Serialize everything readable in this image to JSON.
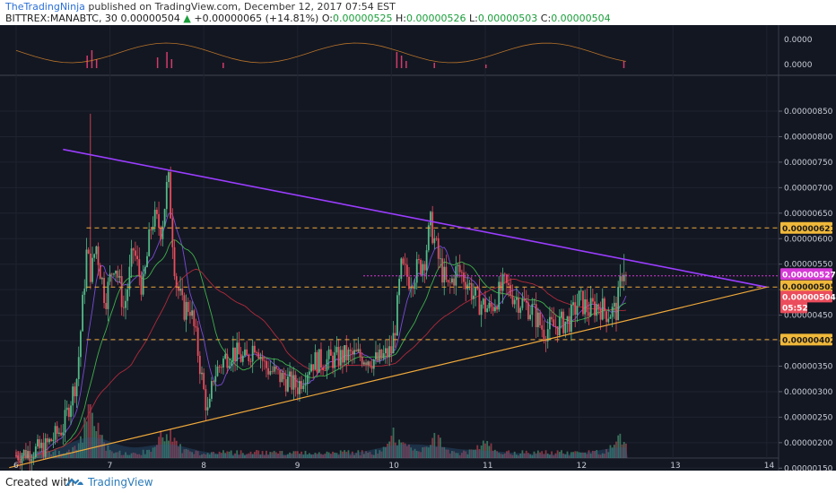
{
  "header": {
    "author": "TheTradingNinja",
    "published": " published on TradingView.com, December 12, 2017 07:54 EST",
    "symbol": "BITTREX:MANABTC, 30",
    "last": "0.00000504",
    "change_arrow": "▲",
    "change": "+0.00000065 (+14.81%)",
    "o_label": "O:",
    "o_value": "0.00000525",
    "h_label": "H:",
    "h_value": "0.00000526",
    "l_label": "L:",
    "l_value": "0.00000503",
    "c_label": "C:",
    "c_value": "0.00000504"
  },
  "footer": {
    "created_with": "Created with",
    "brand": "TradingView",
    "logo_icon": "tradingview-logo-icon"
  },
  "colors": {
    "background": "#131722",
    "up": "#53b987",
    "down": "#eb4d5c",
    "trendline_upper": "#9b3dff",
    "trendline_lower": "#f0a93a",
    "level_line": "#f0a93a",
    "pink_line": "#d63ad6",
    "ma_fast": "#7a4cd6",
    "ma_mid": "#3fb04a",
    "ma_slow": "#b02a3a"
  },
  "chart_data": {
    "type": "candlestick",
    "symbol": "BITTREX:MANABTC",
    "timeframe": "30",
    "x_ticks": [
      "6",
      "7",
      "8",
      "9",
      "10",
      "11",
      "12",
      "13",
      "14"
    ],
    "ylim": [
      1.25e-06,
      8.75e-06
    ],
    "y_ticks": [
      "0.00000850",
      "0.00000800",
      "0.00000750",
      "0.00000700",
      "0.00000650",
      "0.00000600",
      "0.00000550",
      "0.00000500",
      "0.00000450",
      "0.00000400",
      "0.00000350",
      "0.00000300",
      "0.00000250",
      "0.00000200",
      "0.00000150"
    ],
    "price_path": [
      [
        6.0,
        1.75
      ],
      [
        6.3,
        1.9
      ],
      [
        6.5,
        2.3
      ],
      [
        6.65,
        3.3
      ],
      [
        6.75,
        5.7
      ],
      [
        6.8,
        5.3
      ],
      [
        6.85,
        5.9
      ],
      [
        6.95,
        4.8
      ],
      [
        7.05,
        5.6
      ],
      [
        7.15,
        4.6
      ],
      [
        7.25,
        5.8
      ],
      [
        7.35,
        5.0
      ],
      [
        7.45,
        6.4
      ],
      [
        7.55,
        6.2
      ],
      [
        7.62,
        7.2
      ],
      [
        7.7,
        5.2
      ],
      [
        7.78,
        4.6
      ],
      [
        7.85,
        4.7
      ],
      [
        7.92,
        4.0
      ],
      [
        8.0,
        3.0
      ],
      [
        8.05,
        2.5
      ],
      [
        8.1,
        3.3
      ],
      [
        8.2,
        3.6
      ],
      [
        8.3,
        3.8
      ],
      [
        8.45,
        3.6
      ],
      [
        8.55,
        4.0
      ],
      [
        8.65,
        3.5
      ],
      [
        8.8,
        3.3
      ],
      [
        9.0,
        3.1
      ],
      [
        9.15,
        3.6
      ],
      [
        9.3,
        3.6
      ],
      [
        9.5,
        3.7
      ],
      [
        9.7,
        3.7
      ],
      [
        9.85,
        3.6
      ],
      [
        10.0,
        3.8
      ],
      [
        10.05,
        4.4
      ],
      [
        10.1,
        5.4
      ],
      [
        10.2,
        5.2
      ],
      [
        10.35,
        5.6
      ],
      [
        10.42,
        6.3
      ],
      [
        10.5,
        5.6
      ],
      [
        10.6,
        5.0
      ],
      [
        10.7,
        5.4
      ],
      [
        10.8,
        5.2
      ],
      [
        10.9,
        4.8
      ],
      [
        11.05,
        4.6
      ],
      [
        11.2,
        5.1
      ],
      [
        11.35,
        4.8
      ],
      [
        11.5,
        4.6
      ],
      [
        11.62,
        4.2
      ],
      [
        11.75,
        4.3
      ],
      [
        11.9,
        4.4
      ],
      [
        12.0,
        4.8
      ],
      [
        12.1,
        4.6
      ],
      [
        12.2,
        4.7
      ],
      [
        12.3,
        4.55
      ],
      [
        12.4,
        4.6
      ],
      [
        12.47,
        5.5
      ],
      [
        12.52,
        5.04
      ]
    ],
    "volume_peaks": [
      [
        6.8,
        2.7
      ],
      [
        7.6,
        1.6
      ],
      [
        10.05,
        1.2
      ],
      [
        10.45,
        1.0
      ],
      [
        11.0,
        0.5
      ],
      [
        12.47,
        1.1
      ]
    ],
    "price_scale": "1e-6",
    "horizontal_levels": [
      6.21e-06,
      5.05e-06,
      4.02e-06
    ],
    "pink_level": 5.27e-06,
    "upper_trendline": {
      "from": [
        6.5,
        7.75e-06
      ],
      "to": [
        14.0,
        5.05e-06
      ]
    },
    "lower_trendline": {
      "from": [
        6.5,
        1.95e-06
      ],
      "to": [
        14.0,
        5.05e-06
      ]
    },
    "price_tags": [
      {
        "value": "0.00000621",
        "style": "level"
      },
      {
        "value": "0.00000527",
        "style": "pink"
      },
      {
        "value": "0.00000505",
        "style": "level"
      },
      {
        "value": "0.00000504",
        "style": "current"
      },
      {
        "value": "05:52",
        "style": "timer"
      },
      {
        "value": "0.00000402",
        "style": "level"
      }
    ],
    "indicator_ticks": [
      "0.0000",
      "0.0000"
    ]
  }
}
